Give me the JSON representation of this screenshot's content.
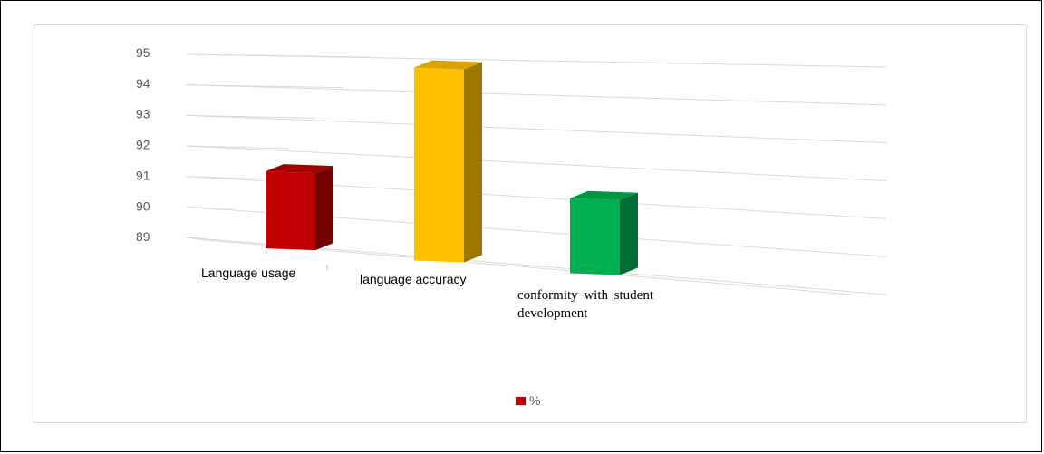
{
  "chart_data": {
    "type": "bar",
    "style": "3d-column",
    "categories": [
      "Language usage",
      "language accuracy",
      "conformity with student development"
    ],
    "series": [
      {
        "name": "%",
        "values": [
          91.6,
          95.0,
          91.3
        ]
      }
    ],
    "bar_colors": [
      "#c00000",
      "#ffc000",
      "#00b050"
    ],
    "yticks": [
      "95",
      "94",
      "93",
      "92",
      "91",
      "90",
      "89"
    ],
    "ylim": [
      89,
      95
    ],
    "grid": true,
    "legend_position": "bottom",
    "legend_color": "#c00000"
  }
}
